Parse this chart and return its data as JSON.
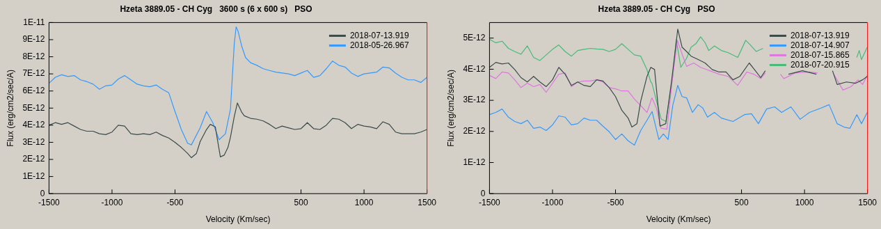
{
  "chart_data": [
    {
      "type": "line",
      "title": "Hzeta 3889.05 - CH Cyg   3600 s (6 x 600 s)   PSO",
      "xlabel": "Velocity (Km/sec)",
      "ylabel": "Flux (erg/cm2/sec/A)",
      "xlim": [
        -1500,
        1500
      ],
      "xticks": [
        -1500,
        -1000,
        -500,
        500,
        1000,
        1500
      ],
      "ylim": [
        0,
        1e-11
      ],
      "yticks": [
        0,
        {
          "value": 1e-12,
          "label": "1E-12"
        },
        {
          "value": 2e-12,
          "label": "2E-12"
        },
        {
          "value": 3e-12,
          "label": "3E-12"
        },
        {
          "value": 4e-12,
          "label": "4E-12"
        },
        {
          "value": 5e-12,
          "label": "5E-12"
        },
        {
          "value": 6e-12,
          "label": "6E-12"
        },
        {
          "value": 7e-12,
          "label": "7E-12"
        },
        {
          "value": 8e-12,
          "label": "8E-12"
        },
        {
          "value": 9e-12,
          "label": "9E-12"
        },
        {
          "value": 1e-11,
          "label": "1E-11"
        }
      ],
      "grid": false,
      "legend": "top right",
      "marker": "none",
      "series": [
        {
          "name": "2018-07-13.919",
          "color": "#3a4a48",
          "x": [
            -1500,
            -1450,
            -1400,
            -1350,
            -1300,
            -1250,
            -1200,
            -1150,
            -1100,
            -1050,
            -1000,
            -950,
            -900,
            -850,
            -800,
            -750,
            -700,
            -650,
            -600,
            -550,
            -500,
            -450,
            -400,
            -370,
            -330,
            -300,
            -250,
            -220,
            -180,
            -160,
            -140,
            -110,
            -80,
            -60,
            -30,
            -5,
            30,
            50,
            100,
            150,
            200,
            250,
            300,
            350,
            400,
            450,
            500,
            550,
            600,
            650,
            700,
            750,
            800,
            850,
            900,
            950,
            1000,
            1050,
            1100,
            1150,
            1200,
            1250,
            1300,
            1350,
            1400,
            1450,
            1500
          ],
          "values": [
            4e-12,
            4.15e-12,
            4.05e-12,
            4.15e-12,
            3.95e-12,
            3.75e-12,
            3.65e-12,
            3.65e-12,
            3.5e-12,
            3.45e-12,
            3.6e-12,
            4e-12,
            3.95e-12,
            3.5e-12,
            3.45e-12,
            3.5e-12,
            3.45e-12,
            3.6e-12,
            3.4e-12,
            3.25e-12,
            3e-12,
            2.7e-12,
            2.35e-12,
            2.1e-12,
            2.35e-12,
            3.05e-12,
            3.75e-12,
            4.05e-12,
            3.9e-12,
            3e-12,
            2.15e-12,
            2.25e-12,
            2.7e-12,
            3.3e-12,
            4.5e-12,
            5.3e-12,
            4.75e-12,
            4.55e-12,
            4.4e-12,
            4.35e-12,
            4.25e-12,
            4.05e-12,
            3.8e-12,
            3.95e-12,
            3.85e-12,
            3.75e-12,
            3.8e-12,
            4.15e-12,
            3.8e-12,
            3.75e-12,
            4e-12,
            4.4e-12,
            4.35e-12,
            4.15e-12,
            3.8e-12,
            4.05e-12,
            3.95e-12,
            3.9e-12,
            3.8e-12,
            4.2e-12,
            4.05e-12,
            3.6e-12,
            3.5e-12,
            3.5e-12,
            3.5e-12,
            3.6e-12,
            3.75e-12
          ]
        },
        {
          "name": "2018-05-26.967",
          "color": "#3399ff",
          "x": [
            -1500,
            -1450,
            -1400,
            -1350,
            -1300,
            -1250,
            -1200,
            -1150,
            -1100,
            -1050,
            -1000,
            -950,
            -900,
            -850,
            -800,
            -750,
            -700,
            -650,
            -600,
            -550,
            -500,
            -450,
            -400,
            -370,
            -300,
            -250,
            -200,
            -150,
            -100,
            -60,
            -30,
            -15,
            0,
            30,
            60,
            100,
            150,
            200,
            250,
            300,
            350,
            400,
            450,
            500,
            550,
            600,
            650,
            700,
            750,
            800,
            850,
            900,
            950,
            1000,
            1050,
            1100,
            1150,
            1200,
            1250,
            1300,
            1350,
            1400,
            1450,
            1500
          ],
          "values": [
            6.45e-12,
            6.8e-12,
            6.95e-12,
            6.85e-12,
            6.9e-12,
            6.65e-12,
            6.55e-12,
            6.4e-12,
            6.1e-12,
            6.3e-12,
            6.35e-12,
            6.7e-12,
            6.9e-12,
            6.65e-12,
            6.4e-12,
            6.3e-12,
            6.25e-12,
            6.35e-12,
            6.1e-12,
            5.9e-12,
            4.8e-12,
            3.75e-12,
            2.95e-12,
            2.85e-12,
            3.85e-12,
            4.8e-12,
            4.15e-12,
            3.15e-12,
            3.5e-12,
            4.95e-12,
            8.75e-12,
            9.75e-12,
            9.5e-12,
            8.6e-12,
            7.95e-12,
            7.65e-12,
            7.5e-12,
            7.3e-12,
            7.2e-12,
            7.1e-12,
            7.05e-12,
            7e-12,
            6.9e-12,
            7.05e-12,
            7.2e-12,
            6.8e-12,
            6.9e-12,
            7.3e-12,
            7.75e-12,
            7.5e-12,
            7.4e-12,
            7.05e-12,
            6.85e-12,
            7e-12,
            7.05e-12,
            7.1e-12,
            7.4e-12,
            7.35e-12,
            7.05e-12,
            6.8e-12,
            6.65e-12,
            6.65e-12,
            6.5e-12,
            6.8e-12
          ]
        }
      ]
    },
    {
      "type": "line",
      "title": "Hzeta 3889.05 - CH Cyg   PSO",
      "xlabel": "Velocity (Km/sec)",
      "ylabel": "Flux (erg/cm2/sec/A)",
      "xlim": [
        -1500,
        1500
      ],
      "xticks": [
        -1500,
        -1000,
        -500,
        500,
        1000,
        1500
      ],
      "ylim": [
        0,
        5.5e-12
      ],
      "yticks": [
        0,
        {
          "value": 1e-12,
          "label": "1E-12"
        },
        {
          "value": 2e-12,
          "label": "2E-12"
        },
        {
          "value": 3e-12,
          "label": "3E-12"
        },
        {
          "value": 4e-12,
          "label": "4E-12"
        },
        {
          "value": 5e-12,
          "label": "5E-12"
        }
      ],
      "grid": false,
      "legend": "top right",
      "marker": "none",
      "series": [
        {
          "name": "2018-07-13.919",
          "color": "#3a4a48",
          "x": [
            -1500,
            -1450,
            -1400,
            -1350,
            -1300,
            -1250,
            -1200,
            -1150,
            -1100,
            -1050,
            -1000,
            -950,
            -900,
            -850,
            -800,
            -750,
            -700,
            -650,
            -600,
            -550,
            -500,
            -450,
            -400,
            -370,
            -330,
            -300,
            -250,
            -220,
            -190,
            -147,
            -101,
            -55,
            -6,
            28,
            64,
            100,
            156,
            211,
            267,
            322,
            377,
            432,
            487,
            561,
            597,
            652,
            689,
            750,
            873,
            983,
            1094,
            1160,
            1222,
            1259,
            1333,
            1406,
            1461,
            1498
          ],
          "values": [
            4.06e-12,
            4.22e-12,
            4.17e-12,
            4.2e-12,
            3.99e-12,
            3.73e-12,
            3.59e-12,
            3.77e-12,
            3.59e-12,
            3.44e-12,
            3.66e-12,
            4.06e-12,
            3.84e-12,
            3.48e-12,
            3.59e-12,
            3.48e-12,
            3.44e-12,
            3.66e-12,
            3.62e-12,
            3.41e-12,
            3.12e-12,
            2.68e-12,
            2.43e-12,
            2.14e-12,
            2.25e-12,
            2.97e-12,
            3.77e-12,
            4.06e-12,
            3.99e-12,
            2.17e-12,
            2.25e-12,
            3.62e-12,
            5.29e-12,
            4.71e-12,
            4.57e-12,
            4.42e-12,
            4.31e-12,
            4.2e-12,
            3.99e-12,
            3.91e-12,
            3.91e-12,
            3.66e-12,
            3.77e-12,
            4.2e-12,
            4.02e-12,
            3.73e-12,
            3.95e-12,
            null,
            3.84e-12,
            3.95e-12,
            3.84e-12,
            null,
            3.95e-12,
            3.51e-12,
            3.59e-12,
            3.55e-12,
            3.66e-12,
            3.77e-12
          ]
        },
        {
          "name": "2018-07-14.907",
          "color": "#3399ff",
          "x": [
            -1500,
            -1450,
            -1400,
            -1350,
            -1300,
            -1250,
            -1200,
            -1150,
            -1100,
            -1050,
            -1000,
            -950,
            -900,
            -850,
            -800,
            -750,
            -700,
            -650,
            -600,
            -550,
            -500,
            -450,
            -400,
            -350,
            -300,
            -250,
            -210,
            -156,
            -120,
            -83,
            -46,
            -6,
            28,
            64,
            110,
            156,
            193,
            230,
            285,
            340,
            432,
            524,
            579,
            634,
            699,
            763,
            818,
            892,
            965,
            1039,
            1131,
            1195,
            1259,
            1314,
            1360,
            1415,
            1452,
            1498
          ],
          "values": [
            2.54e-12,
            2.61e-12,
            2.72e-12,
            2.46e-12,
            2.32e-12,
            2.25e-12,
            2.36e-12,
            2.1e-12,
            2.14e-12,
            2.03e-12,
            2.21e-12,
            2.5e-12,
            2.46e-12,
            2.21e-12,
            2.25e-12,
            2.43e-12,
            2.36e-12,
            2.36e-12,
            2.17e-12,
            1.99e-12,
            1.74e-12,
            1.92e-12,
            1.7e-12,
            1.56e-12,
            2.03e-12,
            2.36e-12,
            2.64e-12,
            1.74e-12,
            1.92e-12,
            1.74e-12,
            2.83e-12,
            3.48e-12,
            3.12e-12,
            3.08e-12,
            2.61e-12,
            2.86e-12,
            2.75e-12,
            2.46e-12,
            2.61e-12,
            2.43e-12,
            2.32e-12,
            2.54e-12,
            2.57e-12,
            2.25e-12,
            2.72e-12,
            2.79e-12,
            2.61e-12,
            2.79e-12,
            2.39e-12,
            2.61e-12,
            2.75e-12,
            2.86e-12,
            2.25e-12,
            2.14e-12,
            2.1e-12,
            2.54e-12,
            2.25e-12,
            2.61e-12
          ]
        },
        {
          "name": "2018-07-15.865",
          "color": "#dd77dd",
          "x": [
            -1500,
            -1450,
            -1400,
            -1350,
            -1300,
            -1250,
            -1200,
            -1150,
            -1100,
            -1050,
            -1000,
            -950,
            -900,
            -850,
            -800,
            -750,
            -700,
            -650,
            -600,
            -550,
            -500,
            -450,
            -400,
            -350,
            -300,
            -250,
            -211,
            -175,
            -138,
            -92,
            -46,
            -9,
            28,
            64,
            120,
            175,
            248,
            322,
            395,
            469,
            542,
            597,
            652,
            689,
            750,
            809,
            836,
            928,
            1039,
            1103,
            1170,
            1232,
            1305,
            1369,
            1425,
            1461,
            1498
          ],
          "values": [
            3.8e-12,
            3.7e-12,
            3.91e-12,
            3.88e-12,
            3.66e-12,
            3.41e-12,
            3.55e-12,
            3.44e-12,
            3.51e-12,
            3.26e-12,
            3.55e-12,
            3.84e-12,
            3.88e-12,
            3.44e-12,
            3.59e-12,
            3.62e-12,
            3.62e-12,
            3.66e-12,
            3.59e-12,
            3.41e-12,
            3.37e-12,
            3.3e-12,
            3.3e-12,
            3.04e-12,
            2.83e-12,
            2.61e-12,
            3.08e-12,
            2.75e-12,
            2.1e-12,
            2.07e-12,
            3.77e-12,
            4.93e-12,
            4.49e-12,
            4.09e-12,
            4.2e-12,
            4.06e-12,
            3.95e-12,
            3.84e-12,
            3.77e-12,
            3.48e-12,
            3.91e-12,
            3.84e-12,
            3.7e-12,
            3.88e-12,
            null,
            3.84e-12,
            3.7e-12,
            3.88e-12,
            3.91e-12,
            3.88e-12,
            null,
            3.84e-12,
            3.33e-12,
            3.44e-12,
            3.66e-12,
            3.51e-12,
            3.8e-12
          ]
        },
        {
          "name": "2018-07-20.915",
          "color": "#44bb77",
          "x": [
            -1500,
            -1450,
            -1400,
            -1350,
            -1300,
            -1250,
            -1200,
            -1150,
            -1100,
            -1050,
            -1000,
            -950,
            -900,
            -850,
            -800,
            -750,
            -700,
            -650,
            -600,
            -550,
            -500,
            -450,
            -400,
            -350,
            -300,
            -250,
            -220,
            -211,
            -138,
            -100,
            -46,
            -18,
            18,
            64,
            100,
            138,
            175,
            210,
            240,
            285,
            340,
            395,
            470,
            533,
            570,
            616,
            670,
            1000,
            1415,
            1434,
            1452,
            1498
          ],
          "values": [
            4.96e-12,
            4.85e-12,
            4.9e-12,
            4.67e-12,
            4.57e-12,
            4.48e-12,
            4.75e-12,
            4.38e-12,
            4.28e-12,
            4.46e-12,
            4.64e-12,
            4.78e-12,
            4.57e-12,
            4.42e-12,
            4.6e-12,
            4.64e-12,
            4.67e-12,
            4.65e-12,
            4.64e-12,
            4.57e-12,
            4.64e-12,
            4.82e-12,
            4.64e-12,
            4.46e-12,
            4.42e-12,
            3.98e-12,
            3.59e-12,
            3.55e-12,
            2.4e-12,
            2.32e-12,
            3.77e-12,
            4.96e-12,
            4.06e-12,
            4.35e-12,
            4.71e-12,
            4.82e-12,
            5.04e-12,
            4.86e-12,
            4.6e-12,
            4.75e-12,
            4.6e-12,
            4.53e-12,
            4.38e-12,
            4.93e-12,
            4.78e-12,
            4.57e-12,
            4.67e-12,
            null,
            4.38e-12,
            4.6e-12,
            4.31e-12,
            4.71e-12
          ]
        }
      ]
    }
  ]
}
